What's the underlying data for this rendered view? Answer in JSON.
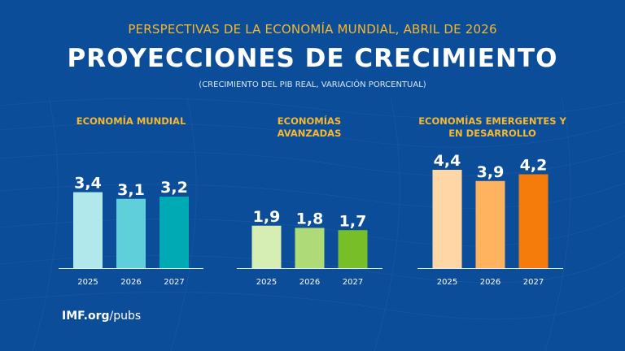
{
  "header": {
    "supertitle": "PERSPECTIVAS DE LA ECONOMÍA MUNDIAL, ABRIL DE 2026",
    "title": "PROYECCIONES DE CRECIMIENTO",
    "subtitle": "(CRECIMIENTO DEL PIB REAL, VARIACIÓN PORCENTUAL)"
  },
  "footer": {
    "site": "IMF.org",
    "path": "/pubs"
  },
  "chart_data": [
    {
      "type": "bar",
      "title": "ECONOMÍA MUNDIAL",
      "categories": [
        "2025",
        "2026",
        "2027"
      ],
      "values": [
        3.4,
        3.1,
        3.2
      ],
      "value_labels": [
        "3,4",
        "3,1",
        "3,2"
      ],
      "colors": [
        "#b0e8ec",
        "#5fcfd9",
        "#00aab5"
      ],
      "grid": false
    },
    {
      "type": "bar",
      "title": "ECONOMÍAS AVANZADAS",
      "categories": [
        "2025",
        "2026",
        "2027"
      ],
      "values": [
        1.9,
        1.8,
        1.7
      ],
      "value_labels": [
        "1,9",
        "1,8",
        "1,7"
      ],
      "colors": [
        "#d6eeb3",
        "#aedb78",
        "#78be28"
      ],
      "grid": false
    },
    {
      "type": "bar",
      "title": "ECONOMÍAS EMERGENTES Y EN DESARROLLO",
      "categories": [
        "2025",
        "2026",
        "2027"
      ],
      "values": [
        4.4,
        3.9,
        4.2
      ],
      "value_labels": [
        "4,4",
        "3,9",
        "4,2"
      ],
      "colors": [
        "#ffd6a6",
        "#ffb35e",
        "#f57c0a"
      ],
      "grid": false
    }
  ]
}
